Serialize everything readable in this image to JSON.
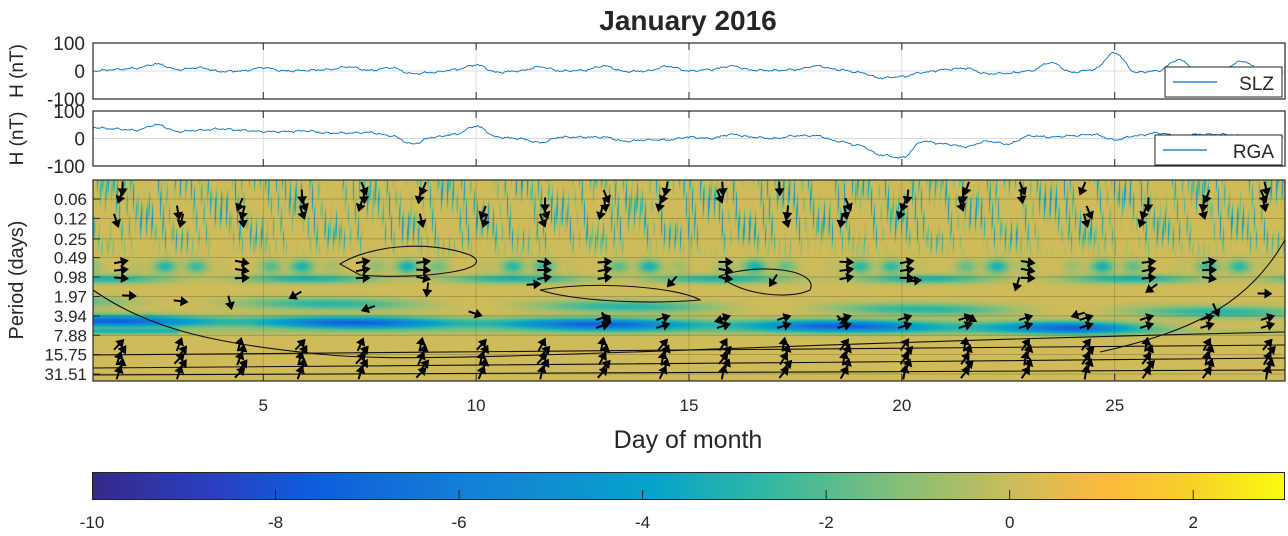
{
  "chart_data": [
    {
      "type": "line",
      "title": "January 2016",
      "ylabel": "H (nT)",
      "ylim": [
        -100,
        100
      ],
      "yticks": [
        "100",
        "0",
        "-100"
      ],
      "xlim": [
        1,
        29
      ],
      "legend": "bottom-right",
      "series": [
        {
          "name": "SLZ",
          "color": "#0072bd",
          "x": [
            1,
            1.5,
            2,
            2.5,
            3,
            3.5,
            4,
            4.5,
            5,
            5.5,
            6,
            6.5,
            7,
            7.5,
            8,
            8.5,
            9,
            9.5,
            10,
            10.5,
            11,
            11.5,
            12,
            12.5,
            13,
            13.5,
            14,
            14.5,
            15,
            15.5,
            16,
            16.5,
            17,
            17.5,
            18,
            18.5,
            19,
            19.5,
            20,
            20.5,
            21,
            21.5,
            22,
            22.5,
            23,
            23.5,
            24,
            24.5,
            25,
            25.5,
            26,
            26.5,
            27,
            27.5,
            28,
            28.5,
            29
          ],
          "values": [
            0,
            5,
            10,
            25,
            5,
            12,
            -2,
            0,
            12,
            0,
            2,
            5,
            15,
            2,
            12,
            -10,
            -5,
            5,
            22,
            -5,
            0,
            15,
            0,
            2,
            18,
            -2,
            0,
            17,
            0,
            5,
            18,
            3,
            2,
            5,
            18,
            5,
            -5,
            -25,
            -20,
            -5,
            5,
            10,
            -10,
            -8,
            0,
            30,
            -5,
            5,
            65,
            -5,
            0,
            40,
            0,
            5,
            35,
            -5,
            -10
          ]
        }
      ]
    },
    {
      "type": "line",
      "ylabel": "H (nT)",
      "ylim": [
        -100,
        100
      ],
      "yticks": [
        "100",
        "0",
        "-100"
      ],
      "xlim": [
        1,
        29
      ],
      "legend": "bottom-right",
      "series": [
        {
          "name": "RGA",
          "color": "#0072bd",
          "x": [
            1,
            1.5,
            2,
            2.5,
            3,
            3.5,
            4,
            4.5,
            5,
            5.5,
            6,
            6.5,
            7,
            7.5,
            8,
            8.5,
            9,
            9.5,
            10,
            10.5,
            11,
            11.5,
            12,
            12.5,
            13,
            13.5,
            14,
            14.5,
            15,
            15.5,
            16,
            16.5,
            17,
            17.5,
            18,
            18.5,
            19,
            19.5,
            20,
            20.5,
            21,
            21.5,
            22,
            22.5,
            23,
            23.5,
            24,
            24.5,
            25,
            25.5,
            26,
            26.5,
            27,
            27.5,
            28,
            28.5,
            29
          ],
          "values": [
            40,
            35,
            30,
            50,
            25,
            30,
            35,
            30,
            25,
            25,
            28,
            20,
            20,
            22,
            10,
            -20,
            5,
            15,
            45,
            5,
            0,
            -15,
            5,
            5,
            5,
            -10,
            -5,
            -5,
            5,
            0,
            15,
            5,
            0,
            10,
            10,
            -10,
            -25,
            -60,
            -70,
            -10,
            -20,
            -30,
            -10,
            -20,
            10,
            5,
            10,
            15,
            -5,
            10,
            20,
            10,
            15,
            15,
            10,
            5,
            5
          ]
        }
      ]
    },
    {
      "type": "heatmap",
      "description_kind": "wavelet coherence phase",
      "ylabel": "Period (days)",
      "yticks": [
        "0.06",
        "0.12",
        "0.25",
        "0.49",
        "0.98",
        "1.97",
        "3.94",
        "7.88",
        "15.75",
        "31.51"
      ],
      "xlabel": "Day of month",
      "xticks": [
        "5",
        "10",
        "15",
        "20",
        "25"
      ],
      "xtick_values": [
        5,
        10,
        15,
        20,
        25
      ],
      "xlim": [
        1,
        29
      ],
      "colorbar": {
        "range": [
          -10,
          3
        ],
        "ticks": [
          "-10",
          "-8",
          "-6",
          "-4",
          "-2",
          "0",
          "2"
        ],
        "tick_values": [
          -10,
          -8,
          -6,
          -4,
          -2,
          0,
          2
        ],
        "orientation": "horizontal",
        "colormap": "parula"
      }
    }
  ]
}
